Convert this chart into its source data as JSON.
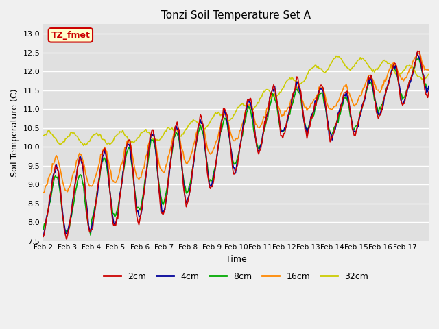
{
  "title": "Tonzi Soil Temperature Set A",
  "xlabel": "Time",
  "ylabel": "Soil Temperature (C)",
  "ylim": [
    7.5,
    13.25
  ],
  "annotation_label": "TZ_fmet",
  "annotation_bg": "#ffffcc",
  "annotation_border": "#cc0000",
  "annotation_text_color": "#cc0000",
  "plot_bg_color": "#e0e0e0",
  "fig_bg_color": "#f0f0f0",
  "line_colors": {
    "2cm": "#cc0000",
    "4cm": "#000099",
    "8cm": "#00aa00",
    "16cm": "#ff8800",
    "32cm": "#cccc00"
  },
  "xtick_labels": [
    "Feb 2",
    "Feb 3",
    "Feb 4",
    "Feb 5",
    "Feb 6",
    "Feb 7",
    "Feb 8",
    "Feb 9",
    "Feb 10",
    "Feb 11",
    "Feb 12",
    "Feb 13",
    "Feb 14",
    "Feb 15",
    "Feb 16",
    "Feb 17"
  ],
  "n_days": 16,
  "pts_per_day": 24
}
